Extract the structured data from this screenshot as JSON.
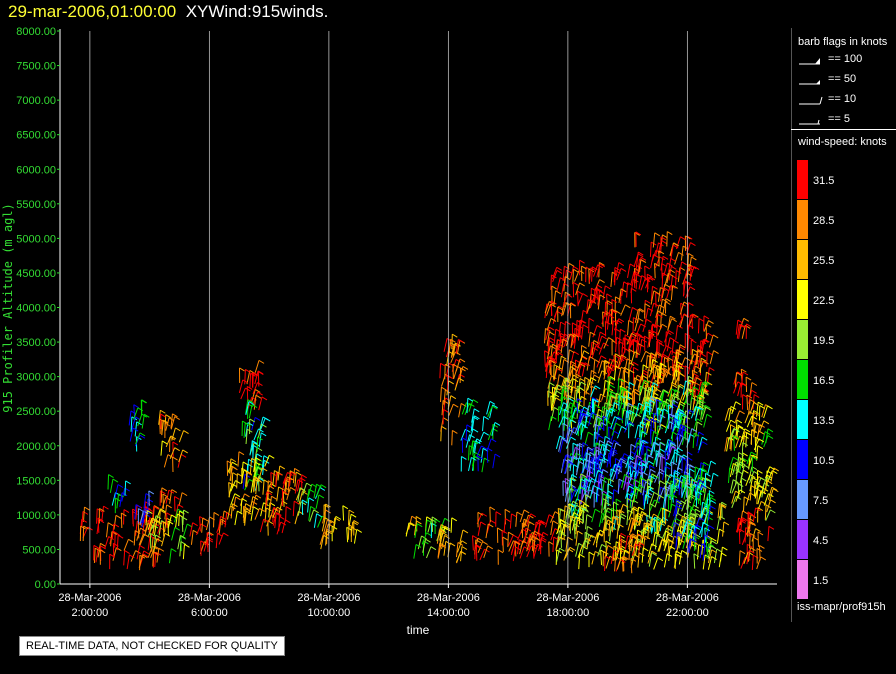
{
  "title": {
    "date": "29-mar-2006,01:00:00",
    "name": "XYWind:915winds."
  },
  "chart_data": {
    "type": "scatter",
    "ylabel": "915 Profiler Altitude (m agl)",
    "xlabel": "time",
    "yticks": [
      "0.00",
      "500.00",
      "1000.00",
      "1500.00",
      "2000.00",
      "2500.00",
      "3000.00",
      "3500.00",
      "4000.00",
      "4500.00",
      "5000.00",
      "5500.00",
      "6000.00",
      "6500.00",
      "7000.00",
      "7500.00",
      "8000.00"
    ],
    "ylim": [
      0,
      8000
    ],
    "xticks": [
      {
        "date": "28-Mar-2006",
        "time": "2:00:00",
        "hour": 2
      },
      {
        "date": "28-Mar-2006",
        "time": "6:00:00",
        "hour": 6
      },
      {
        "date": "28-Mar-2006",
        "time": "10:00:00",
        "hour": 10
      },
      {
        "date": "28-Mar-2006",
        "time": "14:00:00",
        "hour": 14
      },
      {
        "date": "28-Mar-2006",
        "time": "18:00:00",
        "hour": 18
      },
      {
        "date": "28-Mar-2006",
        "time": "22:00:00",
        "hour": 22
      }
    ],
    "xlim_hours": [
      1.0,
      25.0
    ],
    "grid": "vertical",
    "barbs_note": "Wind barbs plotted per profiler gate; colored by wind speed (knots)",
    "clusters": [
      {
        "t0": 1.6,
        "t1": 1.8,
        "h0": 600,
        "h1": 900,
        "speed": 31
      },
      {
        "t0": 2.1,
        "t1": 4.3,
        "h0": 200,
        "h1": 1000,
        "speed": 31
      },
      {
        "t0": 2.6,
        "t1": 3.2,
        "h0": 1000,
        "h1": 1400,
        "speed": 14
      },
      {
        "t0": 3.4,
        "t1": 4.0,
        "h0": 800,
        "h1": 1200,
        "speed": 8
      },
      {
        "t0": 3.8,
        "t1": 4.5,
        "h0": 400,
        "h1": 1000,
        "speed": 22
      },
      {
        "t0": 4.3,
        "t1": 5.0,
        "h0": 800,
        "h1": 1200,
        "speed": 31
      },
      {
        "t0": 4.6,
        "t1": 5.2,
        "h0": 300,
        "h1": 900,
        "speed": 20
      },
      {
        "t0": 3.2,
        "t1": 3.8,
        "h0": 1900,
        "h1": 2500,
        "speed": 14
      },
      {
        "t0": 4.3,
        "t1": 5.0,
        "h0": 1600,
        "h1": 2400,
        "speed": 27
      },
      {
        "t0": 5.3,
        "t1": 6.0,
        "h0": 350,
        "h1": 800,
        "speed": 31
      },
      {
        "t0": 6.1,
        "t1": 6.6,
        "h0": 500,
        "h1": 900,
        "speed": 31
      },
      {
        "t0": 6.9,
        "t1": 7.7,
        "h0": 2500,
        "h1": 3100,
        "speed": 31
      },
      {
        "t0": 7.0,
        "t1": 7.8,
        "h0": 1300,
        "h1": 2500,
        "speed": 15
      },
      {
        "t0": 6.6,
        "t1": 8.0,
        "h0": 800,
        "h1": 1700,
        "speed": 25
      },
      {
        "t0": 7.6,
        "t1": 9.1,
        "h0": 700,
        "h1": 1500,
        "speed": 29
      },
      {
        "t0": 8.9,
        "t1": 9.7,
        "h0": 800,
        "h1": 1300,
        "speed": 16
      },
      {
        "t0": 9.7,
        "t1": 10.9,
        "h0": 500,
        "h1": 1000,
        "speed": 26
      },
      {
        "t0": 12.5,
        "t1": 13.0,
        "h0": 500,
        "h1": 800,
        "speed": 24
      },
      {
        "t0": 12.8,
        "t1": 13.8,
        "h0": 350,
        "h1": 800,
        "speed": 18
      },
      {
        "t0": 13.6,
        "t1": 14.5,
        "h0": 300,
        "h1": 800,
        "speed": 26
      },
      {
        "t0": 13.7,
        "t1": 14.4,
        "h0": 2000,
        "h1": 3400,
        "speed": 29
      },
      {
        "t0": 14.4,
        "t1": 15.5,
        "h0": 1600,
        "h1": 2500,
        "speed": 13
      },
      {
        "t0": 14.8,
        "t1": 16.7,
        "h0": 250,
        "h1": 900,
        "speed": 31
      },
      {
        "t0": 16.6,
        "t1": 17.6,
        "h0": 300,
        "h1": 900,
        "speed": 31
      },
      {
        "t0": 17.2,
        "t1": 20.2,
        "h0": 2900,
        "h1": 4500,
        "speed": 31
      },
      {
        "t0": 20.2,
        "t1": 22.1,
        "h0": 2800,
        "h1": 4900,
        "speed": 31
      },
      {
        "t0": 22.0,
        "t1": 22.8,
        "h0": 2600,
        "h1": 3700,
        "speed": 31
      },
      {
        "t0": 17.3,
        "t1": 22.6,
        "h0": 2500,
        "h1": 3200,
        "speed": 26
      },
      {
        "t0": 17.3,
        "t1": 22.6,
        "h0": 2100,
        "h1": 2800,
        "speed": 18
      },
      {
        "t0": 17.6,
        "t1": 22.4,
        "h0": 1500,
        "h1": 2500,
        "speed": 12
      },
      {
        "t0": 17.8,
        "t1": 22.2,
        "h0": 1100,
        "h1": 1900,
        "speed": 9
      },
      {
        "t0": 18.0,
        "t1": 22.6,
        "h0": 700,
        "h1": 1400,
        "speed": 17
      },
      {
        "t0": 17.6,
        "t1": 23.2,
        "h0": 200,
        "h1": 1000,
        "speed": 23
      },
      {
        "t0": 19.2,
        "t1": 20.4,
        "h0": 150,
        "h1": 800,
        "speed": 29
      },
      {
        "t0": 21.5,
        "t1": 22.8,
        "h0": 300,
        "h1": 1600,
        "speed": 14
      },
      {
        "t0": 23.5,
        "t1": 24.2,
        "h0": 2400,
        "h1": 2900,
        "speed": 31
      },
      {
        "t0": 23.2,
        "t1": 24.6,
        "h0": 1900,
        "h1": 2500,
        "speed": 25
      },
      {
        "t0": 23.3,
        "t1": 24.7,
        "h0": 1400,
        "h1": 2100,
        "speed": 20
      },
      {
        "t0": 23.4,
        "t1": 24.8,
        "h0": 900,
        "h1": 1500,
        "speed": 23
      },
      {
        "t0": 23.6,
        "t1": 24.8,
        "h0": 200,
        "h1": 900,
        "speed": 30
      },
      {
        "t0": 23.6,
        "t1": 24.0,
        "h0": 3500,
        "h1": 3700,
        "speed": 31
      }
    ]
  },
  "legend": {
    "flags_title": "barb flags in knots",
    "flags": [
      "== 100",
      "== 50",
      "== 10",
      "== 5"
    ],
    "speed_title": "wind-speed: knots",
    "colors": [
      {
        "label": "31.5",
        "color": "#ff0000"
      },
      {
        "label": "28.5",
        "color": "#ff8800"
      },
      {
        "label": "25.5",
        "color": "#ffbb00"
      },
      {
        "label": "22.5",
        "color": "#ffff00"
      },
      {
        "label": "19.5",
        "color": "#99ee33"
      },
      {
        "label": "16.5",
        "color": "#00dd00"
      },
      {
        "label": "13.5",
        "color": "#00ffff"
      },
      {
        "label": "10.5",
        "color": "#0000ff"
      },
      {
        "label": "7.5",
        "color": "#6699ff"
      },
      {
        "label": "4.5",
        "color": "#9933ff"
      },
      {
        "label": "1.5",
        "color": "#ee77ee"
      }
    ]
  },
  "quality_note": "REAL-TIME DATA, NOT CHECKED FOR QUALITY",
  "footer": "iss-mapr/prof915h"
}
